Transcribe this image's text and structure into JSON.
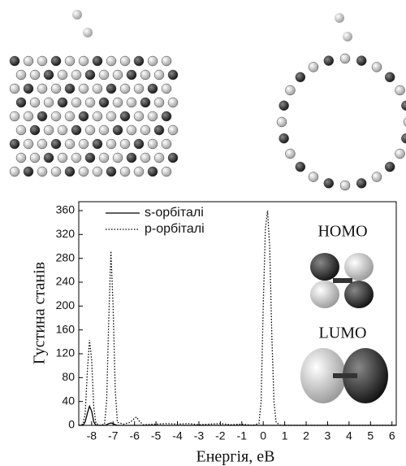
{
  "chart_data": {
    "type": "line",
    "xlabel": "Енергія, еВ",
    "ylabel": "Густина станів",
    "annotations": [
      "HOMO",
      "LUMO"
    ],
    "x": [
      -8.6,
      -8.4,
      -8.3,
      -8.2,
      -8.1,
      -8.0,
      -7.9,
      -7.8,
      -7.6,
      -7.4,
      -7.3,
      -7.2,
      -7.1,
      -7.0,
      -6.9,
      -6.8,
      -6.5,
      -6.2,
      -6.0,
      -5.9,
      -5.8,
      -5.6,
      -5.0,
      -4.5,
      -4.0,
      -3.5,
      -3.0,
      -2.5,
      -2.0,
      -1.5,
      -1.0,
      -0.5,
      -0.2,
      -0.1,
      0.0,
      0.1,
      0.2,
      0.3,
      0.4,
      0.5,
      0.6,
      0.8,
      1.5,
      3.0,
      6.2
    ],
    "series": [
      {
        "name": "s-орбіталі",
        "color": "#000000",
        "dash": "solid",
        "values": [
          0,
          0,
          6,
          20,
          32,
          24,
          6,
          0,
          0,
          0,
          1,
          3,
          4,
          3,
          1,
          0,
          0,
          0,
          0,
          0,
          0,
          0,
          0,
          0,
          0,
          0,
          0,
          0,
          0,
          0,
          0,
          0,
          0,
          0,
          0,
          0,
          0,
          0,
          0,
          0,
          0,
          0,
          0,
          0,
          0
        ]
      },
      {
        "name": "p-орбіталі",
        "color": "#000000",
        "dash": "dotted",
        "values": [
          0,
          2,
          20,
          90,
          143,
          110,
          30,
          3,
          0,
          2,
          40,
          180,
          292,
          200,
          60,
          5,
          2,
          5,
          12,
          14,
          8,
          1,
          2,
          3,
          2,
          3,
          1,
          2,
          3,
          1,
          2,
          0,
          3,
          40,
          200,
          330,
          360,
          300,
          150,
          40,
          5,
          0,
          0,
          0,
          0
        ]
      }
    ],
    "xlim": [
      -8.6,
      6.2
    ],
    "ylim": [
      0,
      375
    ],
    "xticks": [
      -8,
      -7,
      -6,
      -5,
      -4,
      -3,
      -2,
      -1,
      0,
      1,
      2,
      3,
      4,
      5,
      6
    ],
    "yticks": [
      0,
      40,
      80,
      120,
      160,
      200,
      240,
      280,
      320,
      360
    ],
    "legend": "upper left"
  }
}
